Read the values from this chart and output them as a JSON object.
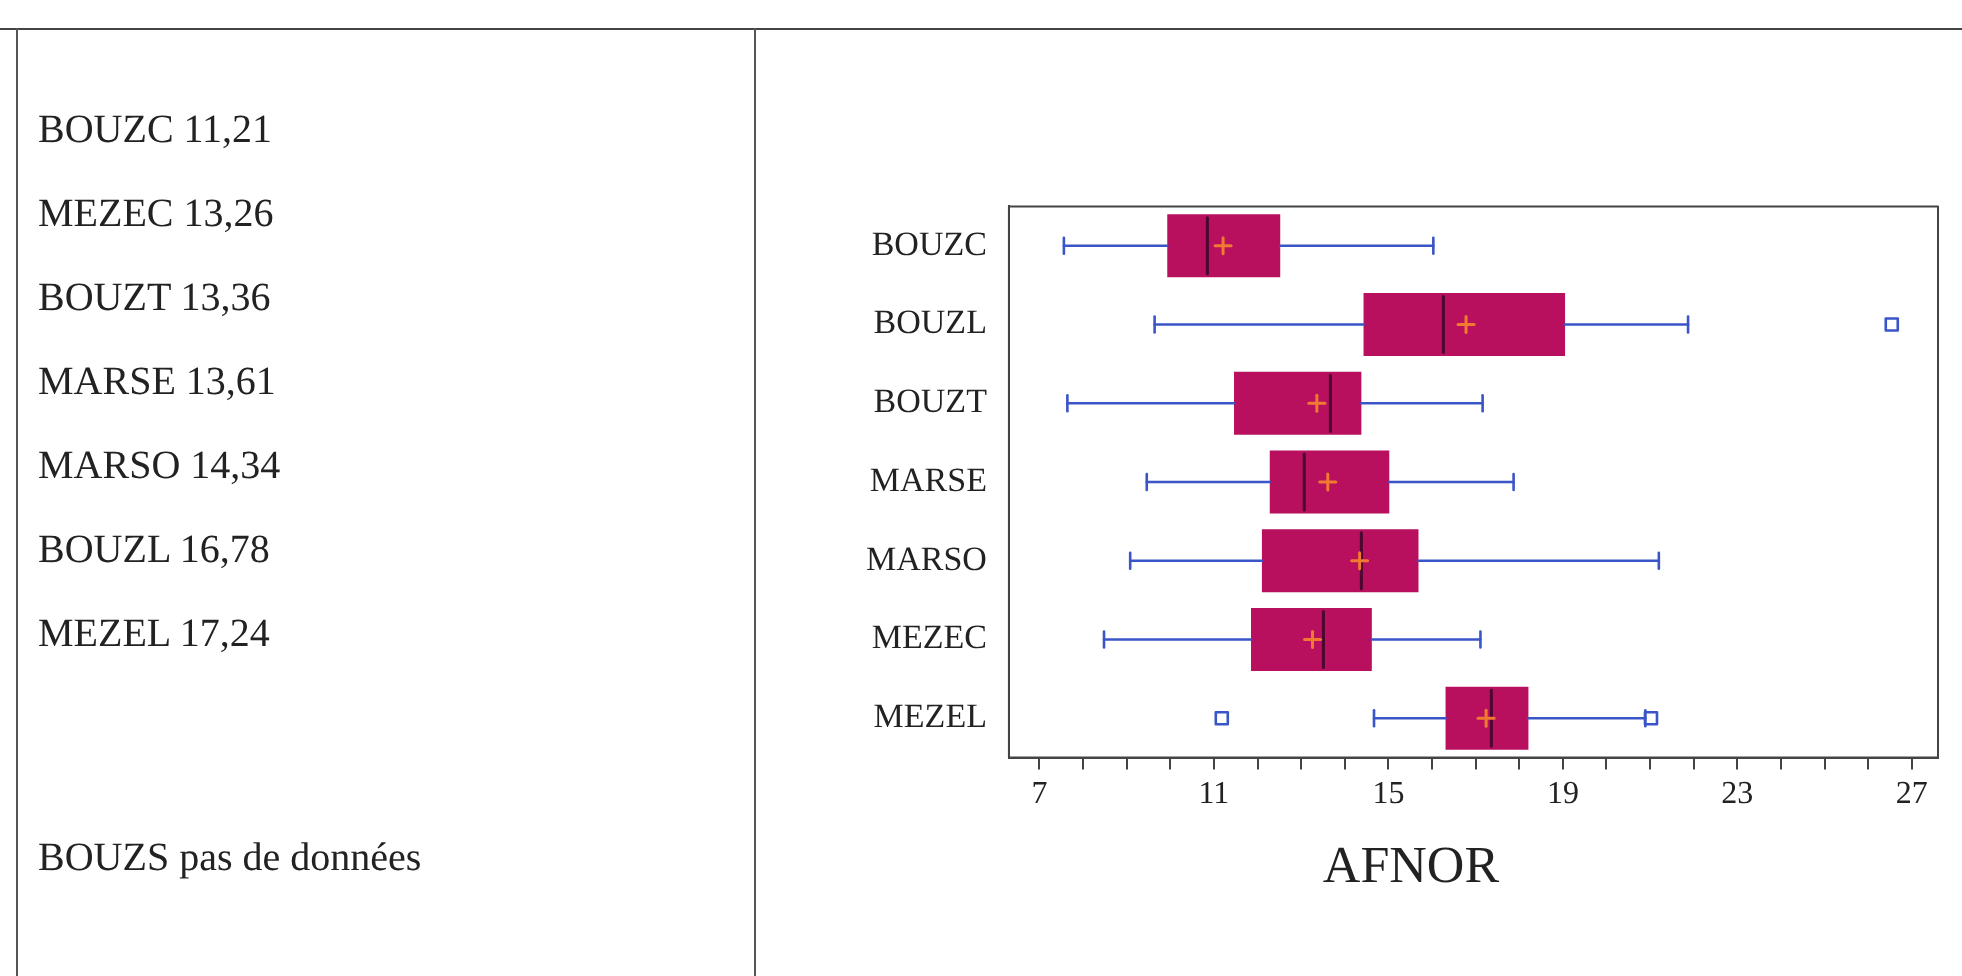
{
  "chart_data": {
    "type": "box",
    "orientation": "horizontal",
    "xlabel": "AFNOR",
    "categories": [
      "BOUZC",
      "BOUZL",
      "BOUZT",
      "MARSE",
      "MARSO",
      "MEZEC",
      "MEZEL"
    ],
    "color": "#b8105e",
    "boxes": [
      {
        "low": 7.56,
        "q1": 9.93,
        "median": 10.85,
        "q3": 12.52,
        "high": 16.03,
        "mean": 11.21
      },
      {
        "low": 9.64,
        "q1": 14.43,
        "median": 16.26,
        "q3": 19.05,
        "high": 21.87,
        "mean": 16.78,
        "outliers": [
          26.54
        ]
      },
      {
        "low": 7.64,
        "q1": 11.46,
        "median": 13.67,
        "q3": 14.38,
        "high": 17.16,
        "mean": 13.36
      },
      {
        "low": 9.46,
        "q1": 12.28,
        "median": 13.07,
        "q3": 15.02,
        "high": 17.87,
        "mean": 13.61
      },
      {
        "low": 9.08,
        "q1": 12.1,
        "median": 14.38,
        "q3": 15.69,
        "high": 21.2,
        "mean": 14.34
      },
      {
        "low": 8.48,
        "q1": 11.85,
        "median": 13.51,
        "q3": 14.62,
        "high": 17.11,
        "mean": 13.26
      },
      {
        "low": 14.67,
        "q1": 16.31,
        "median": 17.36,
        "q3": 18.21,
        "high": 20.89,
        "mean": 17.24,
        "outliers": [
          11.18,
          21.02
        ]
      }
    ],
    "xlim": [
      6.3,
      27.6
    ],
    "xticks": [
      7,
      {
        "value": 8,
        "label": null
      },
      {
        "value": 9,
        "label": null
      },
      {
        "value": 10,
        "label": null
      },
      11,
      {
        "value": 12,
        "label": null
      },
      {
        "value": 13,
        "label": null
      },
      {
        "value": 14,
        "label": null
      },
      15,
      {
        "value": 16,
        "label": null
      },
      {
        "value": 17,
        "label": null
      },
      {
        "value": 18,
        "label": null
      },
      19,
      {
        "value": 20,
        "label": null
      },
      {
        "value": 21,
        "label": null
      },
      {
        "value": 22,
        "label": null
      },
      23,
      {
        "value": 24,
        "label": null
      },
      {
        "value": 25,
        "label": null
      },
      {
        "value": 26,
        "label": null
      },
      27
    ],
    "grid": false,
    "legend": false,
    "annotations": [
      "BOUZC 11,21",
      "MEZEC 13,26",
      "BOUZT 13,36",
      "MARSE 13,61",
      "MARSO 14,34",
      "BOUZL 16,78",
      "MEZEL 17,24",
      "BOUZS pas de données"
    ]
  }
}
